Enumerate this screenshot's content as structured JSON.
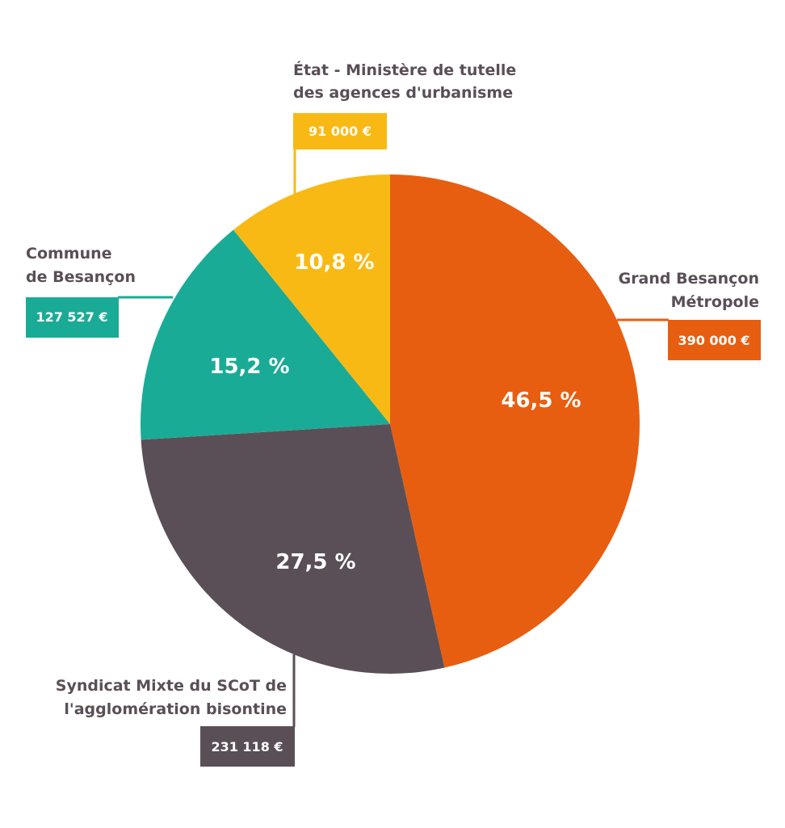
{
  "chart_data": {
    "type": "pie",
    "start": "12 o'clock, clockwise",
    "slices": [
      {
        "id": "grand-besancon",
        "label_lines": [
          "Grand Besançon",
          "Métropole"
        ],
        "amount": "390 000 €",
        "percent_label": "46,5 %",
        "value": 46.5,
        "color": "#e85e10"
      },
      {
        "id": "syndicat-scot",
        "label_lines": [
          "Syndicat Mixte du SCoT de",
          "l'agglomération bisontine"
        ],
        "amount": "231 118 €",
        "percent_label": "27,5 %",
        "value": 27.5,
        "color": "#5a4f57"
      },
      {
        "id": "commune-besancon",
        "label_lines": [
          "Commune",
          "de Besançon"
        ],
        "amount": "127 527 €",
        "percent_label": "15,2 %",
        "value": 15.2,
        "color": "#1aab96"
      },
      {
        "id": "etat",
        "label_lines": [
          "État - Ministère de tutelle",
          "des agences d'urbanisme"
        ],
        "amount": "91 000 €",
        "percent_label": "10,8 %",
        "value": 10.8,
        "color": "#f9b915"
      }
    ]
  }
}
